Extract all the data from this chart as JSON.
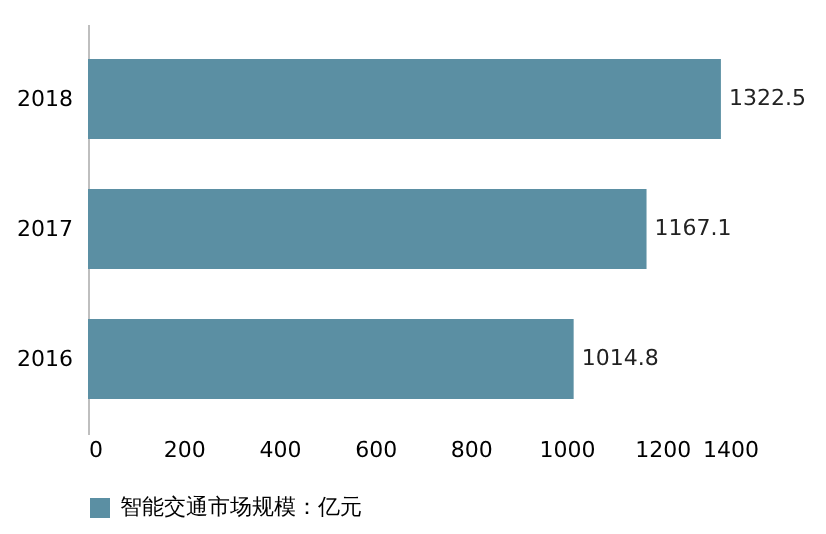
{
  "chart_data": {
    "type": "bar",
    "orientation": "horizontal",
    "categories": [
      "2018",
      "2017",
      "2016"
    ],
    "series": [
      {
        "name": "智能交通市场规模：亿元",
        "color": "#5b8fa3",
        "values": [
          1322.5,
          1167.1,
          1014.8
        ]
      }
    ],
    "xlim": [
      0,
      1400
    ],
    "xticks": [
      0,
      200,
      400,
      600,
      800,
      1000,
      1200,
      1400
    ],
    "grid": false,
    "legend": "bottom",
    "data_labels": true
  }
}
